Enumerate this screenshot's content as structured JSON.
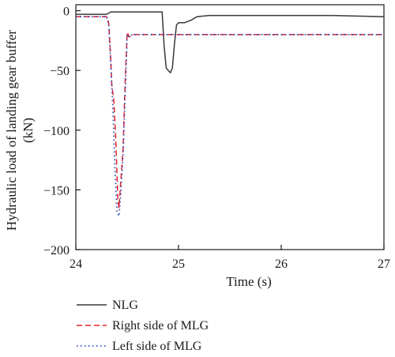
{
  "chart_data": {
    "type": "line",
    "xlabel": "Time (s)",
    "ylabel_line1": "Hydraulic load of landing gear buffer",
    "ylabel_line2": "(kN)",
    "xlim": [
      24,
      27
    ],
    "ylim": [
      -200,
      5
    ],
    "x_ticks": [
      24,
      25,
      26,
      27
    ],
    "y_ticks": [
      0,
      -50,
      -100,
      -150,
      -200
    ],
    "x_tick_labels": [
      "24",
      "25",
      "26",
      "27"
    ],
    "y_tick_labels": [
      "0",
      "−50",
      "−100",
      "−150",
      "−200"
    ],
    "grid": false,
    "legend_position": "below-plot",
    "series": [
      {
        "name": "NLG",
        "color": "#3a3a3a",
        "style": "solid",
        "x": [
          24.0,
          24.3,
          24.34,
          24.4,
          24.5,
          24.6,
          24.7,
          24.8,
          24.84,
          24.86,
          24.88,
          24.92,
          24.94,
          24.96,
          24.98,
          25.0,
          25.06,
          25.12,
          25.18,
          25.3,
          25.5,
          26.0,
          26.5,
          27.0
        ],
        "y": [
          -3,
          -3,
          -1,
          -1,
          -1,
          -1,
          -1,
          -1,
          -1,
          -30,
          -48,
          -52,
          -48,
          -28,
          -12,
          -10,
          -10,
          -8,
          -5,
          -4,
          -4,
          -4,
          -4,
          -5
        ]
      },
      {
        "name": "Right side of MLG",
        "color": "#e8202a",
        "style": "dashed",
        "x": [
          24.0,
          24.3,
          24.32,
          24.34,
          24.35,
          24.37,
          24.39,
          24.41,
          24.42,
          24.44,
          24.46,
          24.48,
          24.5,
          24.52,
          24.55,
          24.7,
          25.0,
          25.5,
          26.0,
          26.5,
          27.0
        ],
        "y": [
          -5,
          -5,
          -10,
          -40,
          -62,
          -75,
          -110,
          -160,
          -165,
          -140,
          -115,
          -60,
          -18,
          -22,
          -20,
          -20,
          -20,
          -20,
          -20,
          -20,
          -20
        ]
      },
      {
        "name": "Left side of MLG",
        "color": "#2a4fbf",
        "style": "dotted",
        "x": [
          24.0,
          24.3,
          24.32,
          24.34,
          24.36,
          24.38,
          24.4,
          24.42,
          24.44,
          24.46,
          24.48,
          24.5,
          24.52,
          24.55,
          24.7,
          25.0,
          25.5,
          26.0,
          26.5,
          27.0
        ],
        "y": [
          -5,
          -5,
          -12,
          -45,
          -80,
          -130,
          -168,
          -172,
          -150,
          -120,
          -70,
          -20,
          -22,
          -20,
          -20,
          -20,
          -20,
          -20,
          -20,
          -20
        ]
      }
    ]
  }
}
